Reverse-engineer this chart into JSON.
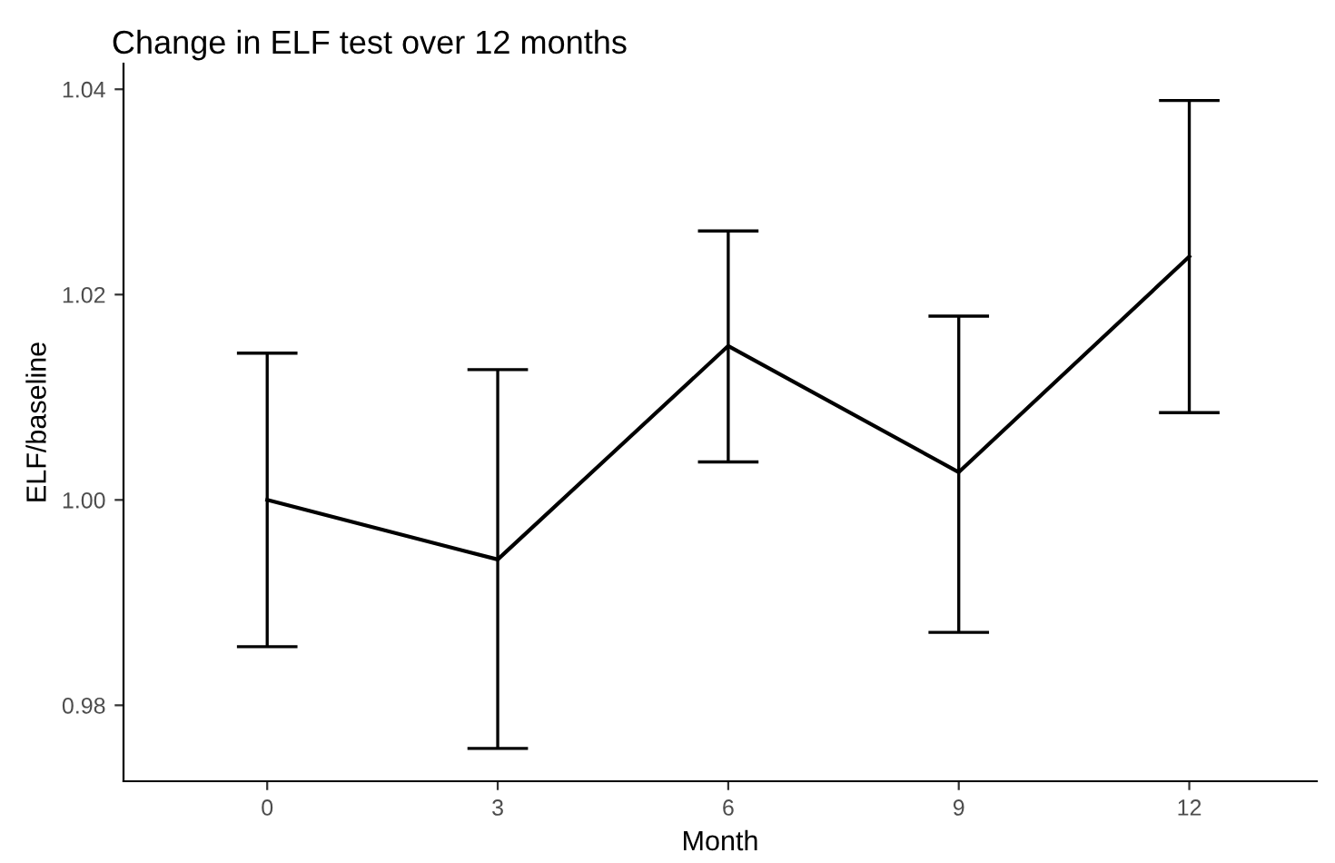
{
  "chart_data": {
    "type": "line",
    "title": "Change in ELF test over 12 months",
    "xlabel": "Month",
    "ylabel": "ELF/baseline",
    "x": [
      0,
      3,
      6,
      9,
      12
    ],
    "series": [
      {
        "color": "#000000",
        "values": [
          1.0,
          0.9942,
          1.015,
          1.0027,
          1.0237
        ],
        "errors": [
          [
            0.9857,
            1.0143
          ],
          [
            0.9758,
            1.0127
          ],
          [
            1.0037,
            1.0262
          ],
          [
            0.9871,
            1.0179
          ],
          [
            1.0085,
            1.0389
          ]
        ]
      }
    ],
    "xlim": [
      -1.87,
      13.66
    ],
    "ylim": [
      0.9726,
      1.0425
    ],
    "xticks": [
      0,
      3,
      6,
      9,
      12
    ],
    "yticks": [
      0.98,
      {
        "value": 1.0,
        "label": "1.00"
      },
      1.02,
      1.04
    ],
    "grid": false,
    "legend": false,
    "marker": "none",
    "line_style": "solid"
  }
}
